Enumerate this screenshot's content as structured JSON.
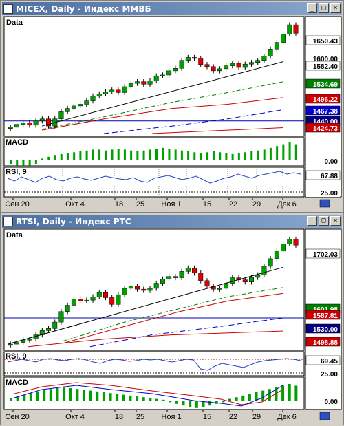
{
  "windows": [
    {
      "title": "MICEX, Daily - Индекс ММВБ",
      "main_label": "Data",
      "price_labels": [
        {
          "value": "1650.43",
          "bg": "#ffffff",
          "fg": "#000000"
        },
        {
          "value": "1600.00",
          "bg": "none",
          "fg": "#000000"
        },
        {
          "value": "1582.40",
          "bg": "#ffffff",
          "fg": "#000000"
        },
        {
          "value": "1534.69",
          "bg": "#008000",
          "fg": "#ffffff"
        },
        {
          "value": "1496.22",
          "bg": "#cc0000",
          "fg": "#ffffff"
        },
        {
          "value": "1467.38",
          "bg": "#0000cc",
          "fg": "#ffffff"
        },
        {
          "value": "1440.00",
          "bg": "#000080",
          "fg": "#ffffff"
        },
        {
          "value": "1424.73",
          "bg": "#cc0000",
          "fg": "#ffffff"
        }
      ],
      "macd_label": "MACD",
      "macd_value": "0.00",
      "rsi_label": "RSI, 9",
      "rsi_value": "67.88",
      "rsi_level": "25.00",
      "x_ticks": [
        "Сен 20",
        "Окт 4",
        "18",
        "25",
        "Ноя 1",
        "15",
        "22",
        "29",
        "Дек 6"
      ]
    },
    {
      "title": "RTSI, Daily - Индекс РТС",
      "main_label": "Data",
      "price_labels": [
        {
          "value": "1702.03",
          "bg": "#ffffff",
          "fg": "#000000"
        },
        {
          "value": "1601.98",
          "bg": "#008000",
          "fg": "#ffffff"
        },
        {
          "value": "1587.81",
          "bg": "#cc0000",
          "fg": "#ffffff"
        },
        {
          "value": "1530.00",
          "bg": "#000080",
          "fg": "#ffffff"
        },
        {
          "value": "1498.88",
          "bg": "#cc0000",
          "fg": "#ffffff"
        }
      ],
      "rsi_label": "RSI, 9",
      "rsi_value": "69.45",
      "rsi_level": "25.00",
      "macd_label": "MACD",
      "macd_value": "0.00",
      "x_ticks": [
        "Сен 20",
        "Окт 4",
        "18",
        "25",
        "Ноя 1",
        "15",
        "22",
        "29",
        "Дек 6"
      ]
    }
  ],
  "colors": {
    "up_candle": "#00a000",
    "down_candle": "#e00000",
    "trend": "#000000",
    "ma_green": "#008000",
    "ma_red": "#cc0000",
    "ma_blue": "#0000cc",
    "rsi_line": "#2040c0"
  },
  "chart_data": [
    {
      "type": "candlestick",
      "title": "MICEX, Daily - Индекс ММВБ",
      "close": [
        1425,
        1432,
        1436,
        1430,
        1440,
        1445,
        1428,
        1445,
        1462,
        1470,
        1476,
        1480,
        1488,
        1500,
        1505,
        1510,
        1514,
        1508,
        1522,
        1530,
        1534,
        1528,
        1536,
        1548,
        1550,
        1560,
        1566,
        1585,
        1592,
        1590,
        1575,
        1570,
        1560,
        1565,
        1572,
        1578,
        1568,
        1576,
        1580,
        1585,
        1595,
        1612,
        1628,
        1648,
        1670,
        1650
      ],
      "ylim": [
        1410,
        1680
      ],
      "levels": [
        1650.43,
        1582.4,
        1534.69,
        1496.22,
        1467.38,
        1440.0,
        1424.73
      ]
    },
    {
      "type": "candlestick",
      "title": "RTSI, Daily - Индекс РТС",
      "close": [
        1468,
        1472,
        1478,
        1480,
        1490,
        1500,
        1505,
        1520,
        1545,
        1560,
        1575,
        1570,
        1572,
        1580,
        1590,
        1578,
        1562,
        1585,
        1600,
        1605,
        1598,
        1595,
        1600,
        1612,
        1622,
        1628,
        1625,
        1640,
        1648,
        1636,
        1618,
        1605,
        1598,
        1600,
        1612,
        1625,
        1620,
        1615,
        1626,
        1632,
        1652,
        1670,
        1688,
        1705,
        1716,
        1702
      ],
      "ylim": [
        1460,
        1730
      ],
      "levels": [
        1702.03,
        1601.98,
        1587.81,
        1530.0,
        1498.88
      ]
    }
  ]
}
